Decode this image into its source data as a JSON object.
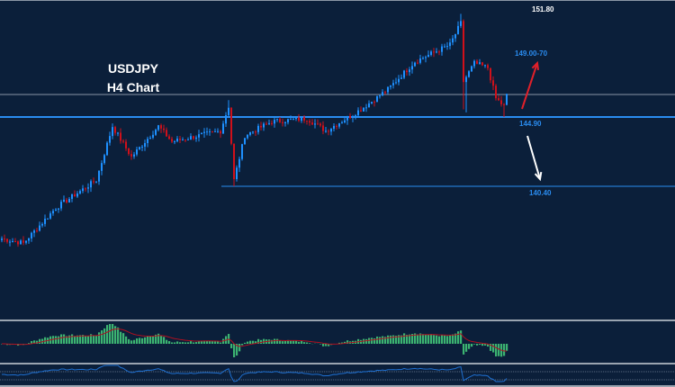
{
  "chart_data": {
    "type": "candlestick",
    "title": "USDJPY",
    "subtitle": "H4 Chart",
    "ylim": [
      132.5,
      152.5
    ],
    "up_color": "#1e90ff",
    "down_color": "#d0101a",
    "background": "#0b1f3a",
    "price_path": [
      [
        0,
        137.0
      ],
      [
        8,
        136.7
      ],
      [
        20,
        139.0
      ],
      [
        35,
        140.8
      ],
      [
        41,
        144.3
      ],
      [
        48,
        142.3
      ],
      [
        58,
        144.3
      ],
      [
        63,
        143.3
      ],
      [
        81,
        144.0
      ],
      [
        84,
        145.6
      ],
      [
        86,
        140.8
      ],
      [
        90,
        143.7
      ],
      [
        100,
        144.6
      ],
      [
        113,
        144.8
      ],
      [
        120,
        144.0
      ],
      [
        133,
        145.4
      ],
      [
        143,
        146.7
      ],
      [
        153,
        148.5
      ],
      [
        166,
        149.6
      ],
      [
        170,
        151.0
      ],
      [
        171,
        147.2
      ],
      [
        175,
        148.4
      ],
      [
        180,
        148.1
      ],
      [
        183,
        146.1
      ],
      [
        186,
        145.6
      ],
      [
        187,
        146.3
      ]
    ],
    "levels": [
      {
        "label": "151.80",
        "value": 151.8,
        "color": "#ffffff",
        "line": false
      },
      {
        "label": "149.00-70",
        "value": 149.0,
        "color": "#2a8cf0",
        "line": false
      },
      {
        "label": "",
        "value": 146.36,
        "color": "#8a96a6",
        "line": true
      },
      {
        "label": "144.90",
        "value": 144.9,
        "color": "#2a8cf0",
        "line": true
      },
      {
        "label": "140.40",
        "value": 140.4,
        "color": "#2a8cf0",
        "line": true
      }
    ],
    "arrows": [
      {
        "direction": "up",
        "color": "#e0202a",
        "target": "149.00-70"
      },
      {
        "direction": "down",
        "color": "#ffffff",
        "target": "140.40"
      }
    ],
    "indicators": [
      {
        "type": "histogram",
        "bar_color": "#3cb371",
        "signal_color": "#b01020"
      },
      {
        "type": "line",
        "color": "#1e6fd0",
        "levels": "dotted"
      }
    ]
  }
}
